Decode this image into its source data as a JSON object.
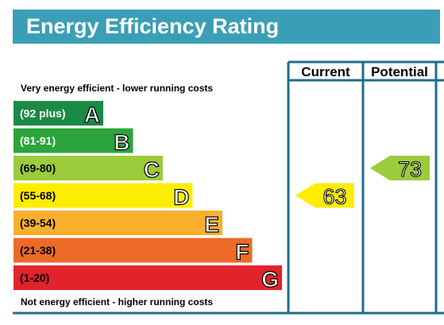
{
  "title": "Energy Efficiency Rating",
  "chart_data": {
    "type": "bar",
    "column_headers": [
      "Current",
      "Potential"
    ],
    "top_label": "Very energy efficient - lower running costs",
    "bottom_label": "Not energy efficient - higher running costs",
    "bands": [
      {
        "letter": "A",
        "range": "(92 plus)",
        "min": 92,
        "max": 100,
        "color": "#1a8a44"
      },
      {
        "letter": "B",
        "range": "(81-91)",
        "min": 81,
        "max": 91,
        "color": "#2ba43b"
      },
      {
        "letter": "C",
        "range": "(69-80)",
        "min": 69,
        "max": 80,
        "color": "#9ccb3b"
      },
      {
        "letter": "D",
        "range": "(55-68)",
        "min": 55,
        "max": 68,
        "color": "#ffed00"
      },
      {
        "letter": "E",
        "range": "(39-54)",
        "min": 39,
        "max": 54,
        "color": "#f8b02c"
      },
      {
        "letter": "F",
        "range": "(21-38)",
        "min": 21,
        "max": 38,
        "color": "#ec6a28"
      },
      {
        "letter": "G",
        "range": "(1-20)",
        "min": 1,
        "max": 20,
        "color": "#e2232a"
      }
    ],
    "ratings": [
      {
        "name": "Current",
        "value": 63,
        "band": "D",
        "color": "#ffed00"
      },
      {
        "name": "Potential",
        "value": 73,
        "band": "C",
        "color": "#9ccb3b"
      }
    ]
  },
  "colors": {
    "title_bar": "#3a9fb6",
    "frame": "#1f6c8c"
  }
}
